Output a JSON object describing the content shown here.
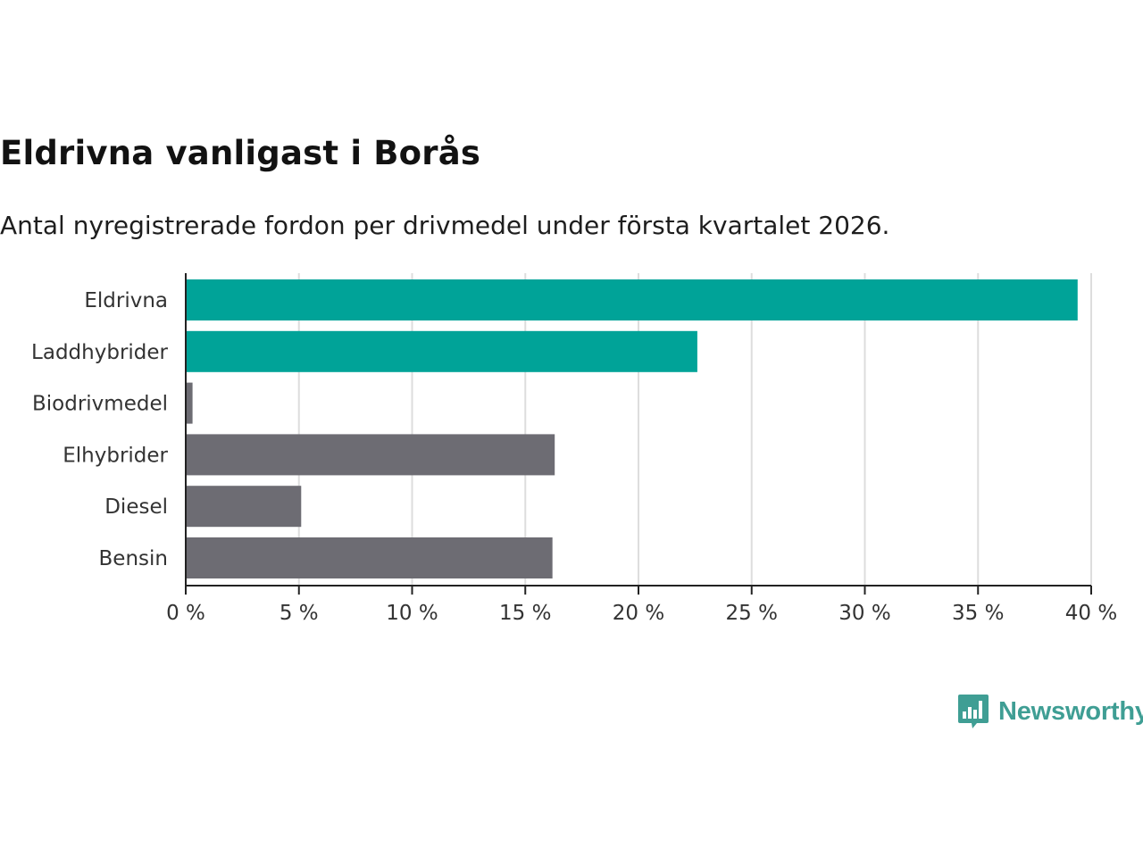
{
  "colors": {
    "highlight": "#00a398",
    "base": "#6d6c73",
    "brand": "#3f9e94"
  },
  "chart_data": {
    "type": "bar",
    "orientation": "horizontal",
    "title": "Eldrivna vanligast i Borås",
    "subtitle": "Antal nyregistrerade fordon per drivmedel under första kvartalet 2026.",
    "categories": [
      "Eldrivna",
      "Laddhybrider",
      "Biodrivmedel",
      "Elhybrider",
      "Diesel",
      "Bensin"
    ],
    "values": [
      39.4,
      22.6,
      0.3,
      16.3,
      5.1,
      16.2
    ],
    "highlighted": [
      true,
      true,
      false,
      false,
      false,
      false
    ],
    "unit": "%",
    "xlim": [
      0,
      40
    ],
    "xticks": [
      0,
      5,
      10,
      15,
      20,
      25,
      30,
      35,
      40
    ],
    "xtick_labels": [
      "0 %",
      "5 %",
      "10 %",
      "15 %",
      "20 %",
      "25 %",
      "30 %",
      "35 %",
      "40 %"
    ],
    "grid": true,
    "xlabel": "",
    "ylabel": ""
  },
  "branding": {
    "logo_text": "Newsworthy"
  }
}
